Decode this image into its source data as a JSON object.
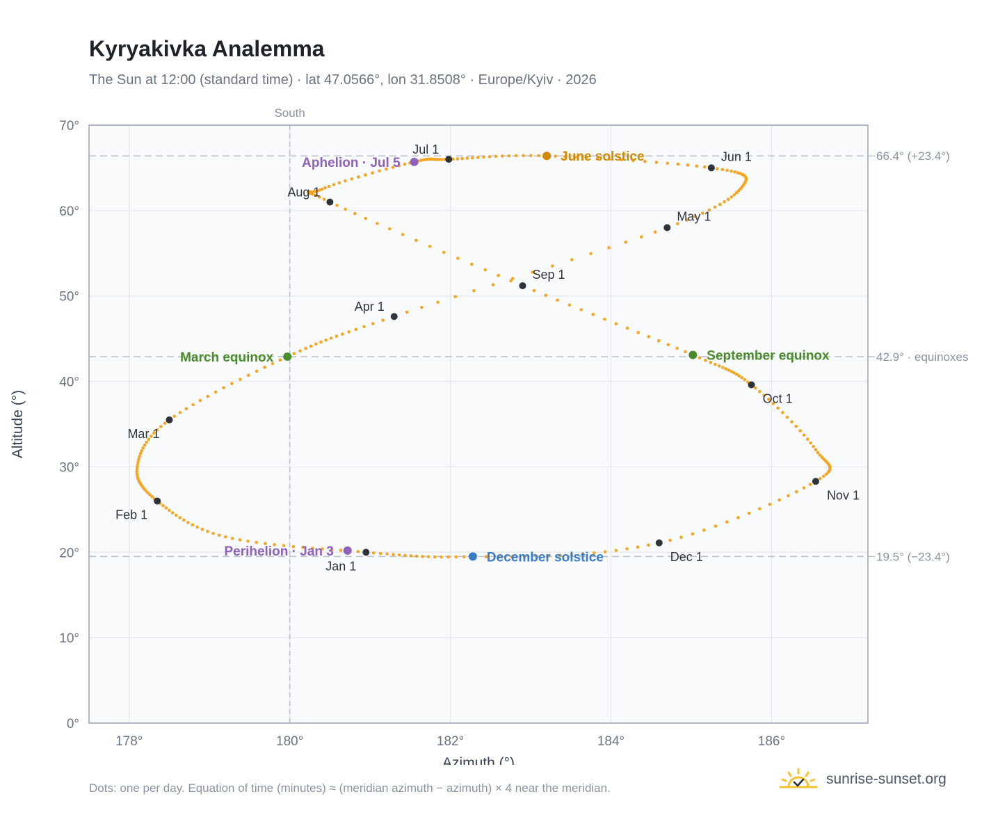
{
  "title": "Kyryakivka Analemma",
  "subtitle": "The Sun at 12:00 (standard time) · lat 47.0566°, lon 31.8508° · Europe/Kyiv · 2026",
  "footnote": "Dots: one per day. Equation of time (minutes) ≈ (meridian azimuth − azimuth) × 4 near the meridian.",
  "brand": {
    "name": "sunrise-sunset.org",
    "icon": "sun-check-icon",
    "icon_color": "#f4c430"
  },
  "chart_data": {
    "type": "scatter",
    "xlabel": "Azimuth (°)",
    "ylabel": "Altitude (°)",
    "xlim": [
      177.5,
      187.2
    ],
    "ylim": [
      0,
      70
    ],
    "x_ticks": [
      178,
      180,
      182,
      184,
      186
    ],
    "x_tick_labels": [
      "178°",
      "180°",
      "182°",
      "184°",
      "186°"
    ],
    "y_ticks": [
      0,
      10,
      20,
      30,
      40,
      50,
      60,
      70
    ],
    "y_tick_labels": [
      "0°",
      "10°",
      "20°",
      "30°",
      "40°",
      "50°",
      "60°",
      "70°"
    ],
    "grid": true,
    "meridian": {
      "azimuth": 180,
      "label": "South"
    },
    "reference_lines": [
      {
        "altitude": 66.4,
        "label": "66.4° (+23.4°)"
      },
      {
        "altitude": 42.9,
        "label": "42.9° · equinoxes"
      },
      {
        "altitude": 19.5,
        "label": "19.5° (−23.4°)"
      }
    ],
    "series": [
      {
        "name": "",
        "note": "daily sun positions, one dot per day (path through monthly anchors)",
        "color": "#f5a623",
        "points": [
          {
            "date": "Jan 1",
            "azimuth": 180.95,
            "altitude": 20.0
          },
          {
            "date": "Jan 18",
            "azimuth": 179.2,
            "altitude": 21.8
          },
          {
            "date": "Feb 1",
            "azimuth": 178.35,
            "altitude": 26.0
          },
          {
            "date": "Feb 12",
            "azimuth": 178.1,
            "altitude": 30.0
          },
          {
            "date": "Mar 1",
            "azimuth": 178.5,
            "altitude": 35.5
          },
          {
            "date": "Mar 20",
            "azimuth": 179.97,
            "altitude": 42.9
          },
          {
            "date": "Apr 1",
            "azimuth": 181.3,
            "altitude": 47.6
          },
          {
            "date": "May 1",
            "azimuth": 184.7,
            "altitude": 58.0
          },
          {
            "date": "May 15",
            "azimuth": 185.65,
            "altitude": 63.0
          },
          {
            "date": "Jun 1",
            "azimuth": 185.25,
            "altitude": 65.0
          },
          {
            "date": "Jun 21",
            "azimuth": 183.2,
            "altitude": 66.4
          },
          {
            "date": "Jul 1",
            "azimuth": 181.98,
            "altitude": 66.0
          },
          {
            "date": "Jul 5",
            "azimuth": 181.55,
            "altitude": 65.7
          },
          {
            "date": "Jul 25",
            "azimuth": 180.4,
            "altitude": 62.5
          },
          {
            "date": "Aug 1",
            "azimuth": 180.5,
            "altitude": 61.0
          },
          {
            "date": "Sep 1",
            "azimuth": 182.9,
            "altitude": 51.2
          },
          {
            "date": "Sep 23",
            "azimuth": 185.02,
            "altitude": 43.1
          },
          {
            "date": "Oct 1",
            "azimuth": 185.75,
            "altitude": 39.6
          },
          {
            "date": "Oct 20",
            "azimuth": 186.55,
            "altitude": 32.0
          },
          {
            "date": "Nov 1",
            "azimuth": 186.55,
            "altitude": 28.3
          },
          {
            "date": "Dec 1",
            "azimuth": 184.6,
            "altitude": 21.1
          },
          {
            "date": "Dec 21",
            "azimuth": 182.28,
            "altitude": 19.5
          },
          {
            "date": "Jan 1",
            "azimuth": 180.95,
            "altitude": 20.0
          }
        ]
      }
    ],
    "month_markers": [
      {
        "label": "Jan 1",
        "azimuth": 180.95,
        "altitude": 20.0,
        "pos": "below-left"
      },
      {
        "label": "Feb 1",
        "azimuth": 178.35,
        "altitude": 26.0,
        "pos": "below-left"
      },
      {
        "label": "Mar 1",
        "azimuth": 178.5,
        "altitude": 35.5,
        "pos": "below-left"
      },
      {
        "label": "Apr 1",
        "azimuth": 181.3,
        "altitude": 47.6,
        "pos": "above-left"
      },
      {
        "label": "May 1",
        "azimuth": 184.7,
        "altitude": 58.0,
        "pos": "above-right"
      },
      {
        "label": "Jun 1",
        "azimuth": 185.25,
        "altitude": 65.0,
        "pos": "above-right"
      },
      {
        "label": "Jul 1",
        "azimuth": 181.98,
        "altitude": 66.0,
        "pos": "above-left"
      },
      {
        "label": "Aug 1",
        "azimuth": 180.5,
        "altitude": 61.0,
        "pos": "above-left"
      },
      {
        "label": "Sep 1",
        "azimuth": 182.9,
        "altitude": 51.2,
        "pos": "above-right"
      },
      {
        "label": "Oct 1",
        "azimuth": 185.75,
        "altitude": 39.6,
        "pos": "below-right"
      },
      {
        "label": "Nov 1",
        "azimuth": 186.55,
        "altitude": 28.3,
        "pos": "below-right"
      },
      {
        "label": "Dec 1",
        "azimuth": 184.6,
        "altitude": 21.1,
        "pos": "below-right"
      }
    ],
    "events": [
      {
        "label": "March equinox",
        "azimuth": 179.97,
        "altitude": 42.9,
        "color": "#4a8c2a",
        "side": "left"
      },
      {
        "label": "September equinox",
        "azimuth": 185.02,
        "altitude": 43.1,
        "color": "#4a8c2a",
        "side": "right"
      },
      {
        "label": "June solstice",
        "azimuth": 183.2,
        "altitude": 66.4,
        "color": "#d48a00",
        "side": "right"
      },
      {
        "label": "December solstice",
        "azimuth": 182.28,
        "altitude": 19.5,
        "color": "#3a7bc8",
        "side": "right"
      },
      {
        "label": "Aphelion · Jul 5",
        "azimuth": 181.55,
        "altitude": 65.7,
        "color": "#8e62b8",
        "side": "left"
      },
      {
        "label": "Perihelion · Jan 3",
        "azimuth": 180.72,
        "altitude": 20.2,
        "color": "#8e62b8",
        "side": "left"
      }
    ]
  }
}
